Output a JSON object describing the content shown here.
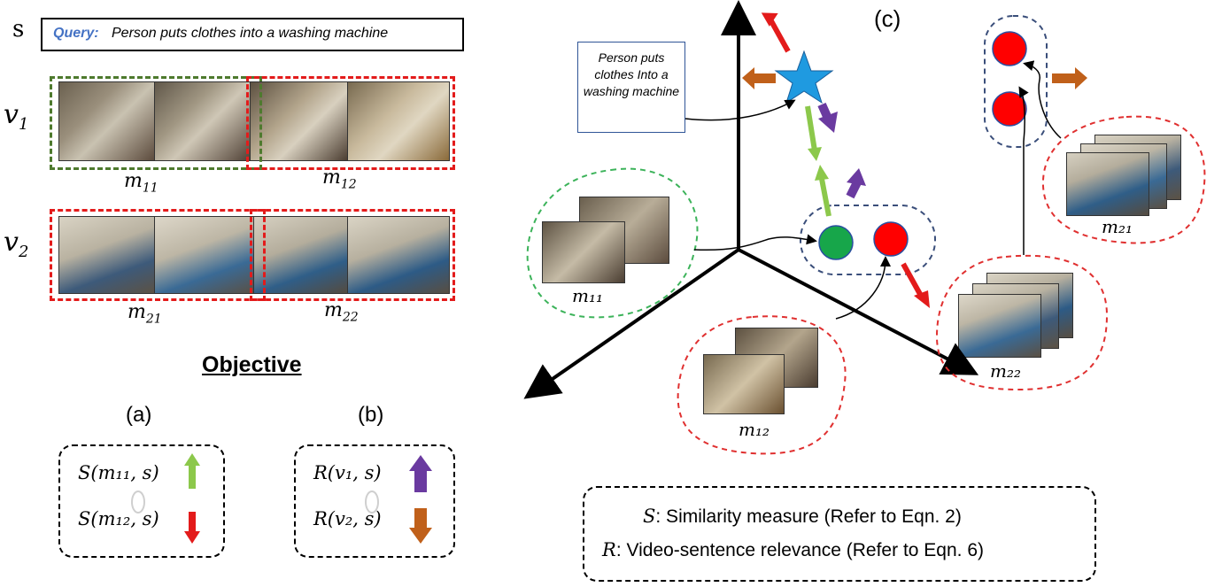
{
  "query": {
    "s_label": "s",
    "label": "Query:",
    "text": "Person puts clothes into a washing machine"
  },
  "videos": [
    {
      "label": "v",
      "sub": "1",
      "moments": [
        {
          "m": "m",
          "sub": "11"
        },
        {
          "m": "m",
          "sub": "12"
        }
      ]
    },
    {
      "label": "v",
      "sub": "2",
      "moments": [
        {
          "m": "m",
          "sub": "21"
        },
        {
          "m": "m",
          "sub": "22"
        }
      ]
    }
  ],
  "objective": {
    "title": "Objective",
    "a": {
      "label": "(a)",
      "line1": "S(m₁₁, s)",
      "line2": "S(m₁₂, s)"
    },
    "b": {
      "label": "(b)",
      "line1": "R(v₁, s)",
      "line2": "R(v₂, s)"
    }
  },
  "panel_c": {
    "label": "(c)",
    "callout": "Person puts clothes Into a washing machine",
    "clusters": {
      "m11": "m₁₁",
      "m12": "m₁₂",
      "m21": "m₂₁",
      "m22": "m₂₂"
    }
  },
  "legend": {
    "line1_symbol": "S",
    "line1_text": ": Similarity measure (Refer to Eqn. 2)",
    "line2_symbol": "R",
    "line2_text": ": Video-sentence relevance (Refer to Eqn. 6)"
  },
  "colors": {
    "green_box": "#4e7a2e",
    "red_box": "#e31b1b",
    "navy_dash": "#3a4e7a",
    "green_dash": "#3cb35a",
    "red_dash": "#e03030",
    "arrow_light_green": "#8cc84b",
    "arrow_red": "#e31b1b",
    "arrow_purple": "#6a3aa0",
    "arrow_brown": "#c0601a",
    "star_blue": "#1f9ae0",
    "circle_green": "#17a64a",
    "circle_red": "#ff0000",
    "query_label_blue": "#4472c4"
  }
}
